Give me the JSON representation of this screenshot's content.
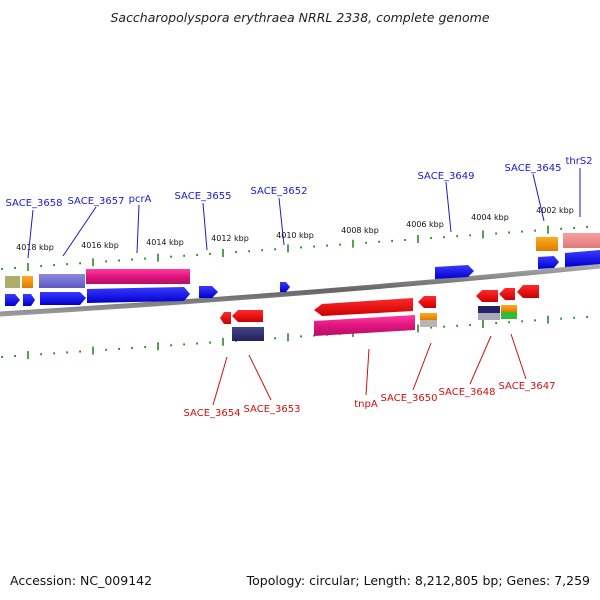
{
  "title": "Saccharopolyspora erythraea NRRL 2338, complete genome",
  "footer": {
    "accession": "Accession: NC_009142",
    "summary": "Topology: circular; Length: 8,212,805 bp; Genes: 7,259"
  },
  "colors": {
    "forward_label": "#1a1acc",
    "reverse_label": "#cc1111",
    "backbone": "#777777",
    "tick": "#2a8a2a"
  },
  "scale_labels": [
    "4018 kbp",
    "4016 kbp",
    "4014 kbp",
    "4012 kbp",
    "4010 kbp",
    "4008 kbp",
    "4006 kbp",
    "4004 kbp",
    "4002 kbp"
  ],
  "forward_genes": [
    "SACE_3658",
    "SACE_3657",
    "pcrA",
    "SACE_3655",
    "SACE_3652",
    "SACE_3649",
    "SACE_3645",
    "thrS2"
  ],
  "reverse_genes": [
    "SACE_3654",
    "SACE_3653",
    "tnpA",
    "SACE_3650",
    "SACE_3648",
    "SACE_3647"
  ]
}
